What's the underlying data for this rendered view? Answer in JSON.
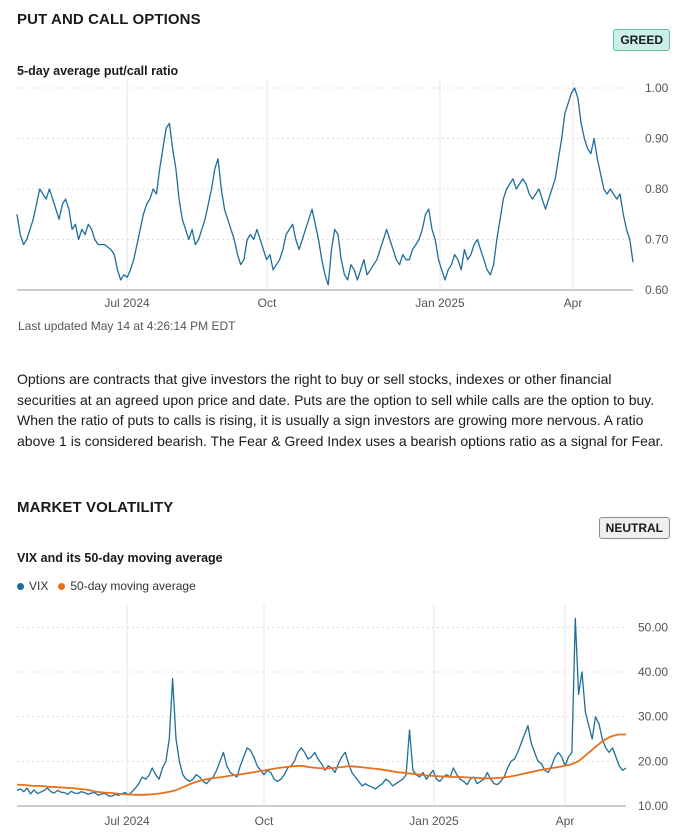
{
  "put_call": {
    "section_title": "PUT AND CALL OPTIONS",
    "badge": "GREED",
    "badge_color": "#c9efe7",
    "subtitle": "5-day average put/call ratio",
    "last_updated": "Last updated May 14 at 4:26:14 PM EDT",
    "description": "Options are contracts that give investors the right to buy or sell stocks, indexes or other financial securities at an agreed upon price and date. Puts are the option to sell while calls are the option to buy. When the ratio of puts to calls is rising, it is usually a sign investors are growing more nervous. A ratio above 1 is considered bearish. The Fear & Greed Index uses a bearish options ratio as a signal for Fear."
  },
  "volatility": {
    "section_title": "MARKET VOLATILITY",
    "badge": "NEUTRAL",
    "badge_color": "#efefef",
    "subtitle": "VIX and its 50-day moving average",
    "legend": [
      {
        "label": "VIX",
        "color": "#1f6e9a"
      },
      {
        "label": "50-day moving average",
        "color": "#e8701a"
      }
    ]
  },
  "chart_data": [
    {
      "type": "line",
      "title": "5-day average put/call ratio",
      "x_tick_labels": [
        "Jul 2024",
        "Oct",
        "Jan 2025",
        "Apr"
      ],
      "y_tick_labels": [
        "1.00",
        "0.90",
        "0.80",
        "0.70",
        "0.60"
      ],
      "ylim": [
        0.6,
        1.0
      ],
      "series": [
        {
          "name": "5-day average put/call ratio",
          "color": "#1f6e9a",
          "values": [
            0.75,
            0.71,
            0.69,
            0.7,
            0.72,
            0.74,
            0.77,
            0.8,
            0.79,
            0.78,
            0.8,
            0.78,
            0.76,
            0.74,
            0.77,
            0.78,
            0.76,
            0.72,
            0.73,
            0.7,
            0.72,
            0.71,
            0.73,
            0.72,
            0.7,
            0.69,
            0.69,
            0.69,
            0.685,
            0.68,
            0.67,
            0.64,
            0.62,
            0.63,
            0.625,
            0.64,
            0.66,
            0.69,
            0.72,
            0.75,
            0.77,
            0.78,
            0.8,
            0.79,
            0.84,
            0.88,
            0.92,
            0.93,
            0.88,
            0.84,
            0.78,
            0.74,
            0.72,
            0.7,
            0.72,
            0.69,
            0.7,
            0.72,
            0.74,
            0.77,
            0.8,
            0.84,
            0.86,
            0.8,
            0.76,
            0.74,
            0.72,
            0.7,
            0.67,
            0.65,
            0.66,
            0.7,
            0.71,
            0.7,
            0.72,
            0.7,
            0.68,
            0.66,
            0.67,
            0.64,
            0.65,
            0.66,
            0.68,
            0.71,
            0.72,
            0.73,
            0.7,
            0.68,
            0.7,
            0.72,
            0.74,
            0.76,
            0.73,
            0.7,
            0.66,
            0.63,
            0.61,
            0.68,
            0.72,
            0.71,
            0.66,
            0.63,
            0.62,
            0.65,
            0.64,
            0.62,
            0.64,
            0.66,
            0.63,
            0.64,
            0.65,
            0.66,
            0.68,
            0.7,
            0.72,
            0.7,
            0.68,
            0.66,
            0.65,
            0.67,
            0.66,
            0.66,
            0.68,
            0.69,
            0.7,
            0.72,
            0.75,
            0.76,
            0.72,
            0.7,
            0.66,
            0.64,
            0.62,
            0.64,
            0.65,
            0.67,
            0.66,
            0.64,
            0.68,
            0.66,
            0.67,
            0.69,
            0.7,
            0.68,
            0.66,
            0.64,
            0.63,
            0.65,
            0.7,
            0.74,
            0.78,
            0.8,
            0.81,
            0.82,
            0.8,
            0.81,
            0.82,
            0.81,
            0.79,
            0.78,
            0.79,
            0.8,
            0.78,
            0.76,
            0.78,
            0.8,
            0.82,
            0.86,
            0.9,
            0.95,
            0.97,
            0.99,
            1.0,
            0.98,
            0.93,
            0.9,
            0.88,
            0.87,
            0.9,
            0.86,
            0.83,
            0.8,
            0.79,
            0.8,
            0.79,
            0.78,
            0.79,
            0.75,
            0.72,
            0.7,
            0.655
          ]
        }
      ]
    },
    {
      "type": "line",
      "title": "VIX and its 50-day moving average",
      "x_tick_labels": [
        "Jul 2024",
        "Oct",
        "Jan 2025",
        "Apr"
      ],
      "y_tick_labels": [
        "50.00",
        "40.00",
        "30.00",
        "20.00",
        "10.00"
      ],
      "ylim": [
        10,
        55
      ],
      "series": [
        {
          "name": "VIX",
          "color": "#1f6e9a",
          "values": [
            13.5,
            13.8,
            13.2,
            14.0,
            12.7,
            13.6,
            12.8,
            13.1,
            13.5,
            14.0,
            13.2,
            12.9,
            13.5,
            13.1,
            13.0,
            12.6,
            13.3,
            12.9,
            12.8,
            13.2,
            13.0,
            12.6,
            12.9,
            13.0,
            12.4,
            12.7,
            12.8,
            12.3,
            12.2,
            12.6,
            12.4,
            12.8,
            13.0,
            12.5,
            13.2,
            14.0,
            15.0,
            16.5,
            16.0,
            16.8,
            18.5,
            17.0,
            16.0,
            18.5,
            20.0,
            25.0,
            38.5,
            25.0,
            20.0,
            17.0,
            16.0,
            15.5,
            16.0,
            17.0,
            16.5,
            15.5,
            15.0,
            15.8,
            16.5,
            18.0,
            20.0,
            22.0,
            19.0,
            17.5,
            17.0,
            16.5,
            19.0,
            21.0,
            23.0,
            22.5,
            21.0,
            19.0,
            18.0,
            17.0,
            18.0,
            17.5,
            16.0,
            15.5,
            16.0,
            17.0,
            18.5,
            19.0,
            20.0,
            22.0,
            23.0,
            22.0,
            20.5,
            21.0,
            22.0,
            20.5,
            19.5,
            18.0,
            19.0,
            18.5,
            17.5,
            19.5,
            21.0,
            22.0,
            19.5,
            17.5,
            16.5,
            15.5,
            14.5,
            15.0,
            14.5,
            14.2,
            13.8,
            14.5,
            15.0,
            16.0,
            15.5,
            14.5,
            15.0,
            15.5,
            16.0,
            17.0,
            27.0,
            18.0,
            17.0,
            16.5,
            17.5,
            16.0,
            17.0,
            18.0,
            16.0,
            15.5,
            16.5,
            17.0,
            16.5,
            18.5,
            17.0,
            16.0,
            15.5,
            14.8,
            16.0,
            16.5,
            15.0,
            15.5,
            16.0,
            17.5,
            16.0,
            15.0,
            14.8,
            15.5,
            16.5,
            18.5,
            20.0,
            20.5,
            22.0,
            24.0,
            26.0,
            28.0,
            24.0,
            22.0,
            20.0,
            19.5,
            18.0,
            17.5,
            19.0,
            21.0,
            22.0,
            21.0,
            19.0,
            21.0,
            22.0,
            52.0,
            35.0,
            40.0,
            31.0,
            28.0,
            25.0,
            30.0,
            28.5,
            25.0,
            23.0,
            22.0,
            23.0,
            21.0,
            19.0,
            18.0,
            18.5
          ]
        },
        {
          "name": "50-day moving average",
          "color": "#e8701a",
          "values": [
            14.8,
            14.7,
            14.5,
            14.5,
            14.3,
            14.2,
            14.1,
            14.0,
            13.8,
            13.6,
            13.2,
            13.0,
            12.9,
            12.7,
            12.6,
            12.5,
            12.5,
            12.6,
            12.8,
            13.1,
            13.5,
            14.2,
            15.0,
            15.6,
            16.0,
            16.3,
            16.5,
            16.8,
            17.0,
            17.3,
            17.6,
            17.9,
            18.2,
            18.5,
            18.7,
            18.9,
            19.0,
            18.7,
            18.5,
            18.4,
            18.5,
            18.7,
            18.9,
            18.8,
            18.6,
            18.4,
            18.2,
            17.9,
            17.6,
            17.4,
            17.2,
            17.0,
            16.8,
            16.7,
            16.6,
            16.5,
            16.5,
            16.4,
            16.3,
            16.2,
            16.2,
            16.3,
            16.5,
            16.8,
            17.2,
            17.6,
            18.0,
            18.3,
            18.6,
            18.9,
            19.3,
            20.0,
            21.5,
            23.0,
            24.5,
            25.5,
            26.0,
            26.0
          ]
        }
      ]
    }
  ]
}
